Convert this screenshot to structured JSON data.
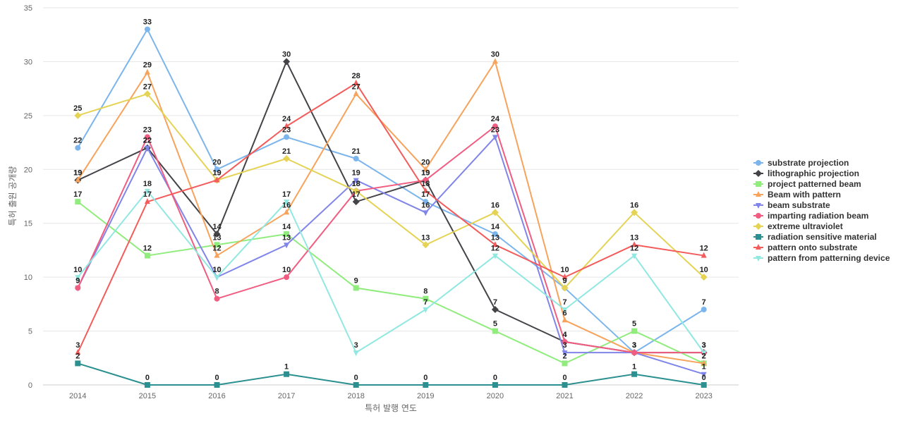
{
  "chart_data": {
    "type": "line",
    "title": "",
    "xlabel": "특허 발행 연도",
    "ylabel": "특허 출원 공개량",
    "ylim": [
      0,
      35
    ],
    "yticks": [
      0,
      5,
      10,
      15,
      20,
      25,
      30,
      35
    ],
    "grid": true,
    "legend_position": "right",
    "x": [
      "2014",
      "2015",
      "2016",
      "2017",
      "2018",
      "2019",
      "2020",
      "2021",
      "2022",
      "2023"
    ],
    "series": [
      {
        "name": "substrate projection",
        "color": "#7cb5ec",
        "marker": "circle",
        "values": [
          22,
          33,
          20,
          23,
          21,
          17,
          14,
          9,
          3,
          7
        ]
      },
      {
        "name": "lithographic projection",
        "color": "#434348",
        "marker": "diamond",
        "values": [
          19,
          22,
          14,
          30,
          17,
          19,
          7,
          4,
          3,
          3
        ]
      },
      {
        "name": "project patterned beam",
        "color": "#90ed7d",
        "marker": "square",
        "values": [
          17,
          12,
          13,
          14,
          9,
          8,
          5,
          2,
          5,
          2
        ]
      },
      {
        "name": "Beam with pattern",
        "color": "#f7a35c",
        "marker": "triangle",
        "values": [
          19,
          29,
          12,
          16,
          27,
          20,
          30,
          6,
          3,
          2
        ]
      },
      {
        "name": "beam substrate",
        "color": "#8085e9",
        "marker": "triangle-down",
        "values": [
          9,
          22,
          10,
          13,
          19,
          16,
          23,
          3,
          3,
          1
        ]
      },
      {
        "name": "imparting radiation beam",
        "color": "#f15c80",
        "marker": "circle",
        "values": [
          9,
          23,
          8,
          10,
          18,
          19,
          24,
          4,
          3,
          3
        ]
      },
      {
        "name": "extreme ultraviolet",
        "color": "#e4d354",
        "marker": "diamond",
        "values": [
          25,
          27,
          19,
          21,
          18,
          13,
          16,
          9,
          16,
          10
        ]
      },
      {
        "name": "radiation sensitive material",
        "color": "#2b908f",
        "marker": "square",
        "values": [
          2,
          0,
          0,
          1,
          0,
          0,
          0,
          0,
          1,
          0
        ]
      },
      {
        "name": "pattern onto substrate",
        "color": "#f45b5b",
        "marker": "triangle",
        "values": [
          3,
          17,
          19,
          24,
          28,
          18,
          13,
          10,
          13,
          12
        ]
      },
      {
        "name": "pattern from patterning device",
        "color": "#91e8e1",
        "marker": "triangle-down",
        "values": [
          10,
          18,
          10,
          17,
          3,
          7,
          12,
          7,
          12,
          3
        ]
      }
    ]
  }
}
